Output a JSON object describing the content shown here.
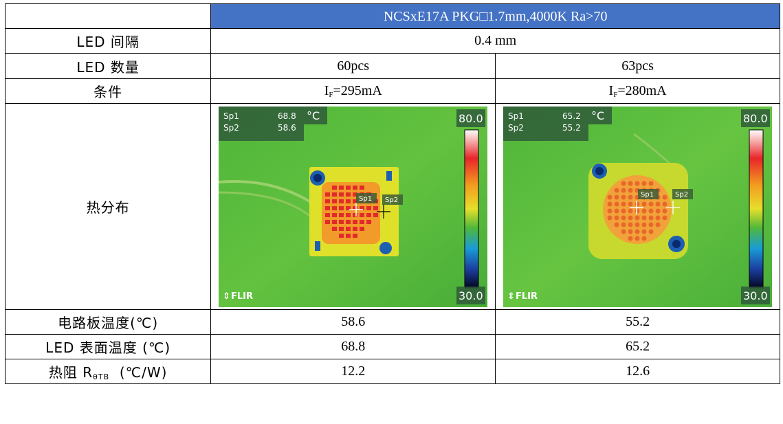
{
  "table": {
    "title": "NCSxE17A PKG□1.7mm,4000K Ra>70",
    "rows": {
      "spacing": {
        "label": "LED 间隔",
        "value": "0.4 mm"
      },
      "count": {
        "label": "LED 数量",
        "a": "60pcs",
        "b": "63pcs"
      },
      "condition": {
        "label": "条件",
        "a_prefix": "I",
        "a_sub": "F",
        "a_value": "=295mA",
        "b_prefix": "I",
        "b_sub": "F",
        "b_value": "=280mA"
      },
      "thermal": {
        "label": "热分布"
      },
      "board_temp": {
        "label": "电路板温度(℃)",
        "a": "58.6",
        "b": "55.2"
      },
      "surface_temp": {
        "label": "LED 表面温度 (℃)",
        "a": "68.8",
        "b": "65.2"
      },
      "resistance": {
        "label_prefix": "热阻 R",
        "label_sub": "θTB",
        "label_suffix": "  (℃/W)",
        "a": "12.2",
        "b": "12.6"
      }
    }
  },
  "thermal_images": [
    {
      "sp1_label": "Sp1",
      "sp1_value": "68.8",
      "sp2_label": "Sp2",
      "sp2_value": "58.6",
      "unit": "°C",
      "scale_max": "80.0",
      "scale_min": "30.0",
      "brand": "FLIR"
    },
    {
      "sp1_label": "Sp1",
      "sp1_value": "65.2",
      "sp2_label": "Sp2",
      "sp2_value": "55.2",
      "unit": "°C",
      "scale_max": "80.0",
      "scale_min": "30.0",
      "brand": "FLIR"
    }
  ],
  "colors": {
    "header_bg": "#4472c4",
    "background_green": "#5bbf3c",
    "hot_red": "#e8332a",
    "board_yellow": "#e6df2a"
  }
}
